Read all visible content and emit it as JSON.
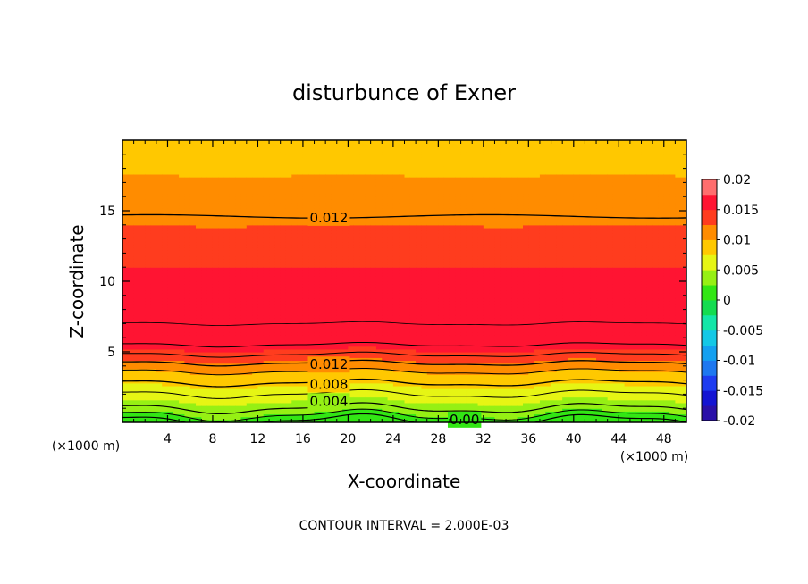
{
  "chart_data": {
    "type": "heatmap",
    "subtype": "filled-contour",
    "title": "disturbunce of Exner",
    "xlabel": "X-coordinate",
    "ylabel": "Z-coordinate",
    "x_unit_label": "(×1000 m)",
    "y_unit_label": "(×1000 m)",
    "xlim": [
      0,
      50
    ],
    "ylim": [
      0,
      20
    ],
    "x_ticks": [
      4,
      8,
      12,
      16,
      20,
      24,
      28,
      32,
      36,
      40,
      44,
      48
    ],
    "y_ticks": [
      5,
      10,
      15
    ],
    "footer": "CONTOUR INTERVAL = 2.000E-03",
    "colorbar": {
      "levels": [
        -0.02,
        -0.0175,
        -0.015,
        -0.0125,
        -0.01,
        -0.0075,
        -0.005,
        -0.0025,
        0,
        0.0025,
        0.005,
        0.0075,
        0.01,
        0.0125,
        0.015,
        0.0175,
        0.02
      ],
      "colors": [
        "#6a0da6",
        "#2a10a8",
        "#1414d2",
        "#1e3cf0",
        "#1e78f0",
        "#14a0f0",
        "#14c8e6",
        "#14e6a8",
        "#14dc50",
        "#32e614",
        "#96f014",
        "#e6f514",
        "#ffc800",
        "#ff8c00",
        "#ff3c1e",
        "#ff1432",
        "#ff6e6e",
        "#ff9696"
      ],
      "tick_labels": [
        "0.02",
        "0.015",
        "0.01",
        "0.005",
        "0",
        "-0.005",
        "-0.01",
        "-0.015",
        "-0.02"
      ]
    },
    "profile": {
      "z": [
        0,
        1,
        2,
        2.8,
        3.6,
        4.2,
        4.8,
        5.5,
        7,
        9,
        10,
        12,
        14.6,
        17.5,
        20
      ],
      "value": [
        0.0,
        0.004,
        0.006,
        0.008,
        0.01,
        0.012,
        0.014,
        0.016,
        0.0175,
        0.017,
        0.016,
        0.014,
        0.012,
        0.01,
        0.009
      ]
    },
    "contour_labels": [
      {
        "text": "0.012",
        "x": 16.6,
        "z": 14.5
      },
      {
        "text": "0.012",
        "x": 16.6,
        "z": 4.1
      },
      {
        "text": "0.008",
        "x": 16.6,
        "z": 2.7
      },
      {
        "text": "0.004",
        "x": 16.6,
        "z": 1.5
      },
      {
        "text": "0.00",
        "x": 29,
        "z": 0.2
      }
    ]
  }
}
